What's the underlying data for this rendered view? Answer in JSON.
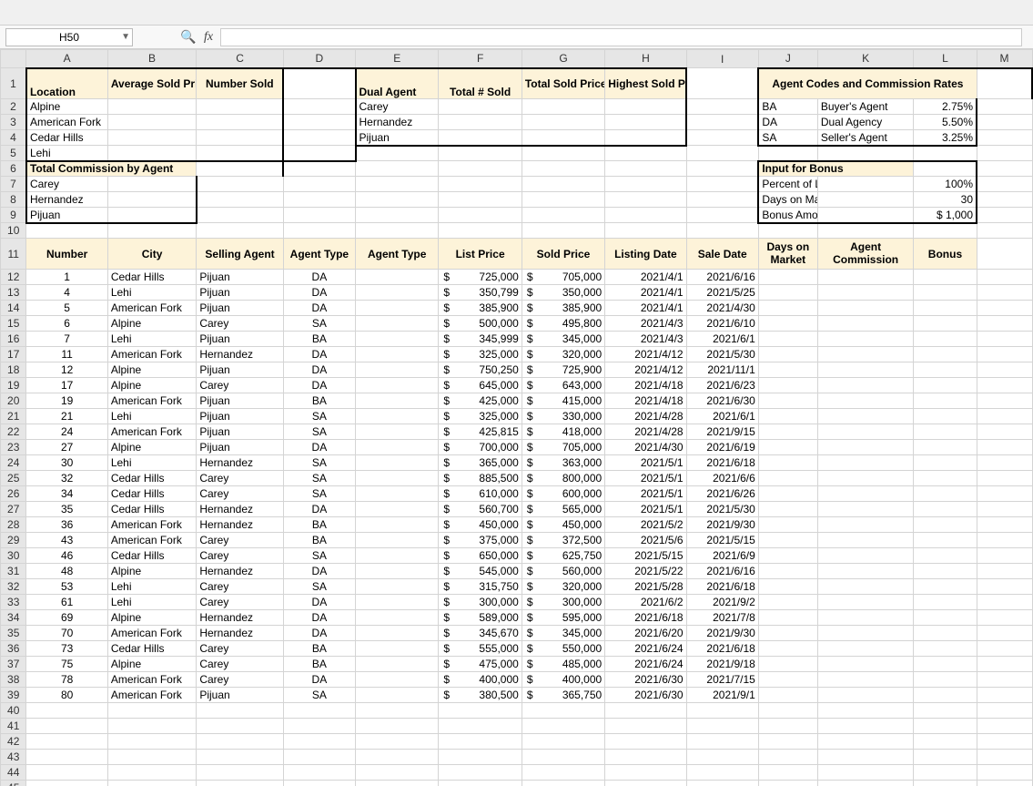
{
  "nameBox": "H50",
  "cols": {
    "row": 28,
    "A": 88,
    "B": 96,
    "C": 94,
    "D": 78,
    "E": 90,
    "F": 90,
    "G": 90,
    "H": 88,
    "I": 78,
    "J": 64,
    "K": 104,
    "L": 68,
    "M": 60
  },
  "topHeaders": {
    "A1": "Location",
    "B1": "Average Sold Price",
    "C1": "Number Sold",
    "E1": "Dual Agent",
    "F1": "Total # Sold",
    "G1": "Total Sold Prices",
    "H1": "Highest Sold Price",
    "J1": "Agent Codes and Commission Rates"
  },
  "locations": [
    "Alpine",
    "American Fork",
    "Cedar Hills",
    "Lehi"
  ],
  "dualAgents": [
    "Carey",
    "Hernandez",
    "Pijuan"
  ],
  "codes": [
    {
      "c": "BA",
      "n": "Buyer's Agent",
      "r": "2.75%"
    },
    {
      "c": "DA",
      "n": "Dual Agency",
      "r": "5.50%"
    },
    {
      "c": "SA",
      "n": "Seller's Agent",
      "r": "3.25%"
    }
  ],
  "commHdr": "Total Commission by Agent",
  "commAgents": [
    "Carey",
    "Hernandez",
    "Pijuan"
  ],
  "bonusHdr": "Input for Bonus",
  "bonusRows": [
    {
      "l": "Percent of List",
      "v": "100%"
    },
    {
      "l": "Days on Market",
      "v": "30"
    },
    {
      "l": "Bonus Amount",
      "v": "$    1,000"
    }
  ],
  "headers11": [
    "Number",
    "City",
    "Selling Agent",
    "Agent Type",
    "Agent Type",
    "List Price",
    "Sold Price",
    "Listing Date",
    "Sale Date",
    "Days on Market",
    "Agent Commission",
    "Bonus"
  ],
  "rows": [
    {
      "n": 1,
      "city": "Cedar Hills",
      "agent": "Pijuan",
      "type": "DA",
      "list": "725,000",
      "sold": "705,000",
      "ld": "2021/4/1",
      "sd": "2021/6/16"
    },
    {
      "n": 4,
      "city": "Lehi",
      "agent": "Pijuan",
      "type": "DA",
      "list": "350,799",
      "sold": "350,000",
      "ld": "2021/4/1",
      "sd": "2021/5/25"
    },
    {
      "n": 5,
      "city": "American Fork",
      "agent": "Pijuan",
      "type": "DA",
      "list": "385,900",
      "sold": "385,900",
      "ld": "2021/4/1",
      "sd": "2021/4/30"
    },
    {
      "n": 6,
      "city": "Alpine",
      "agent": "Carey",
      "type": "SA",
      "list": "500,000",
      "sold": "495,800",
      "ld": "2021/4/3",
      "sd": "2021/6/10"
    },
    {
      "n": 7,
      "city": "Lehi",
      "agent": "Pijuan",
      "type": "BA",
      "list": "345,999",
      "sold": "345,000",
      "ld": "2021/4/3",
      "sd": "2021/6/1"
    },
    {
      "n": 11,
      "city": "American Fork",
      "agent": "Hernandez",
      "type": "DA",
      "list": "325,000",
      "sold": "320,000",
      "ld": "2021/4/12",
      "sd": "2021/5/30"
    },
    {
      "n": 12,
      "city": "Alpine",
      "agent": "Pijuan",
      "type": "DA",
      "list": "750,250",
      "sold": "725,900",
      "ld": "2021/4/12",
      "sd": "2021/11/1"
    },
    {
      "n": 17,
      "city": "Alpine",
      "agent": "Carey",
      "type": "DA",
      "list": "645,000",
      "sold": "643,000",
      "ld": "2021/4/18",
      "sd": "2021/6/23"
    },
    {
      "n": 19,
      "city": "American Fork",
      "agent": "Pijuan",
      "type": "BA",
      "list": "425,000",
      "sold": "415,000",
      "ld": "2021/4/18",
      "sd": "2021/6/30"
    },
    {
      "n": 21,
      "city": "Lehi",
      "agent": "Pijuan",
      "type": "SA",
      "list": "325,000",
      "sold": "330,000",
      "ld": "2021/4/28",
      "sd": "2021/6/1"
    },
    {
      "n": 24,
      "city": "American Fork",
      "agent": "Pijuan",
      "type": "SA",
      "list": "425,815",
      "sold": "418,000",
      "ld": "2021/4/28",
      "sd": "2021/9/15"
    },
    {
      "n": 27,
      "city": "Alpine",
      "agent": "Pijuan",
      "type": "DA",
      "list": "700,000",
      "sold": "705,000",
      "ld": "2021/4/30",
      "sd": "2021/6/19"
    },
    {
      "n": 30,
      "city": "Lehi",
      "agent": "Hernandez",
      "type": "SA",
      "list": "365,000",
      "sold": "363,000",
      "ld": "2021/5/1",
      "sd": "2021/6/18"
    },
    {
      "n": 32,
      "city": "Cedar Hills",
      "agent": "Carey",
      "type": "SA",
      "list": "885,500",
      "sold": "800,000",
      "ld": "2021/5/1",
      "sd": "2021/6/6"
    },
    {
      "n": 34,
      "city": "Cedar Hills",
      "agent": "Carey",
      "type": "SA",
      "list": "610,000",
      "sold": "600,000",
      "ld": "2021/5/1",
      "sd": "2021/6/26"
    },
    {
      "n": 35,
      "city": "Cedar Hills",
      "agent": "Hernandez",
      "type": "DA",
      "list": "560,700",
      "sold": "565,000",
      "ld": "2021/5/1",
      "sd": "2021/5/30"
    },
    {
      "n": 36,
      "city": "American Fork",
      "agent": "Hernandez",
      "type": "BA",
      "list": "450,000",
      "sold": "450,000",
      "ld": "2021/5/2",
      "sd": "2021/9/30"
    },
    {
      "n": 43,
      "city": "American Fork",
      "agent": "Carey",
      "type": "BA",
      "list": "375,000",
      "sold": "372,500",
      "ld": "2021/5/6",
      "sd": "2021/5/15"
    },
    {
      "n": 46,
      "city": "Cedar Hills",
      "agent": "Carey",
      "type": "SA",
      "list": "650,000",
      "sold": "625,750",
      "ld": "2021/5/15",
      "sd": "2021/6/9"
    },
    {
      "n": 48,
      "city": "Alpine",
      "agent": "Hernandez",
      "type": "DA",
      "list": "545,000",
      "sold": "560,000",
      "ld": "2021/5/22",
      "sd": "2021/6/16"
    },
    {
      "n": 53,
      "city": "Lehi",
      "agent": "Carey",
      "type": "SA",
      "list": "315,750",
      "sold": "320,000",
      "ld": "2021/5/28",
      "sd": "2021/6/18"
    },
    {
      "n": 61,
      "city": "Lehi",
      "agent": "Carey",
      "type": "DA",
      "list": "300,000",
      "sold": "300,000",
      "ld": "2021/6/2",
      "sd": "2021/9/2"
    },
    {
      "n": 69,
      "city": "Alpine",
      "agent": "Hernandez",
      "type": "DA",
      "list": "589,000",
      "sold": "595,000",
      "ld": "2021/6/18",
      "sd": "2021/7/8"
    },
    {
      "n": 70,
      "city": "American Fork",
      "agent": "Hernandez",
      "type": "DA",
      "list": "345,670",
      "sold": "345,000",
      "ld": "2021/6/20",
      "sd": "2021/9/30"
    },
    {
      "n": 73,
      "city": "Cedar Hills",
      "agent": "Carey",
      "type": "BA",
      "list": "555,000",
      "sold": "550,000",
      "ld": "2021/6/24",
      "sd": "2021/6/18"
    },
    {
      "n": 75,
      "city": "Alpine",
      "agent": "Carey",
      "type": "BA",
      "list": "475,000",
      "sold": "485,000",
      "ld": "2021/6/24",
      "sd": "2021/9/18"
    },
    {
      "n": 78,
      "city": "American Fork",
      "agent": "Carey",
      "type": "DA",
      "list": "400,000",
      "sold": "400,000",
      "ld": "2021/6/30",
      "sd": "2021/7/15"
    },
    {
      "n": 80,
      "city": "American Fork",
      "agent": "Pijuan",
      "type": "SA",
      "list": "380,500",
      "sold": "365,750",
      "ld": "2021/6/30",
      "sd": "2021/9/1"
    }
  ],
  "colHeaders": [
    "A",
    "B",
    "C",
    "D",
    "E",
    "F",
    "G",
    "H",
    "I",
    "J",
    "K",
    "L",
    "M"
  ],
  "rowLabels": [
    1,
    2,
    3,
    4,
    5,
    6,
    7,
    8,
    9,
    10,
    11,
    12,
    13,
    14,
    15,
    16,
    17,
    18,
    19,
    20,
    21,
    22,
    23,
    24,
    25,
    26,
    27,
    28,
    29,
    30,
    31,
    32,
    33,
    34,
    35,
    36,
    37,
    38,
    39,
    40,
    41,
    42,
    43,
    44,
    45
  ],
  "colors": {
    "tan": "#fdf3d9",
    "headerBg": "#e6e6e6",
    "border": "#d4d4d4",
    "activeOutline": "#217346",
    "selHeader": "#d3e5c9"
  }
}
